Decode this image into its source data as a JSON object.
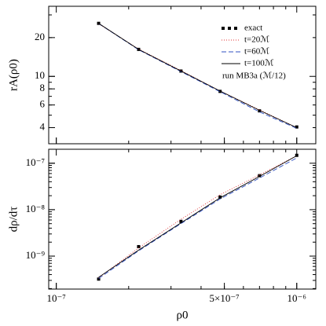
{
  "chart_data": [
    {
      "type": "line",
      "ylabel": "rA(ρ0)",
      "log_x": true,
      "log_y": true,
      "x": [
        1.5e-07,
        2.2e-07,
        3.3e-07,
        4.8e-07,
        7e-07,
        1e-06
      ],
      "xlim": [
        9.3e-08,
        1.2e-06
      ],
      "ylim": [
        3,
        35
      ],
      "yticks": [
        4,
        6,
        8,
        10,
        20
      ],
      "series": [
        {
          "name": "exact",
          "color": "#000000",
          "line_style": "markers",
          "values": [
            25.8,
            16.2,
            11.0,
            7.65,
            5.4,
            4.05
          ]
        },
        {
          "name": "t=20ℳ",
          "color": "#e03030",
          "line_style": "dotted",
          "values": [
            25.6,
            16.3,
            11.1,
            7.7,
            5.5,
            4.0
          ]
        },
        {
          "name": "t=60ℳ",
          "color": "#3050c0",
          "line_style": "dashed",
          "values": [
            25.7,
            16.1,
            10.9,
            7.6,
            5.3,
            3.95
          ]
        },
        {
          "name": "t=100ℳ",
          "color": "#000000",
          "line_style": "solid",
          "values": [
            25.8,
            16.2,
            11.0,
            7.7,
            5.45,
            4.0
          ]
        }
      ],
      "annotation": "run MB3a (ℳ/12)"
    },
    {
      "type": "line",
      "ylabel": "dρ/dτ",
      "xlabel": "ρ0",
      "log_x": true,
      "log_y": true,
      "x": [
        1.5e-07,
        2.2e-07,
        3.3e-07,
        4.8e-07,
        7e-07,
        1e-06
      ],
      "xlim": [
        9.3e-08,
        1.2e-06
      ],
      "ylim": [
        1.95e-10,
        2e-07
      ],
      "xticks": [
        {
          "value": 1e-07,
          "label": "10⁻⁷"
        },
        {
          "value": 5e-07,
          "label": "5×10⁻⁷"
        },
        {
          "value": 1e-06,
          "label": "10⁻⁶"
        }
      ],
      "yticks": [
        {
          "value": 1e-09,
          "label": "10⁻⁹"
        },
        {
          "value": 1e-08,
          "label": "10⁻⁸"
        },
        {
          "value": 1e-07,
          "label": "10⁻⁷"
        }
      ],
      "series": [
        {
          "name": "exact",
          "color": "#000000",
          "line_style": "markers",
          "values": [
            3.2e-10,
            1.6e-09,
            5.6e-09,
            1.87e-08,
            5.4e-08,
            1.48e-07
          ]
        },
        {
          "name": "t=20ℳ",
          "color": "#e03030",
          "line_style": "dotted",
          "values": [
            3.4e-10,
            1.5e-09,
            6.2e-09,
            2.1e-08,
            5.6e-08,
            1.45e-07
          ]
        },
        {
          "name": "t=60ℳ",
          "color": "#3050c0",
          "line_style": "dashed",
          "values": [
            3.3e-10,
            1.3e-09,
            5e-09,
            1.7e-08,
            4.8e-08,
            1.3e-07
          ]
        },
        {
          "name": "t=100ℳ",
          "color": "#000000",
          "line_style": "solid",
          "values": [
            3.5e-10,
            1.35e-09,
            5.2e-09,
            1.8e-08,
            5.2e-08,
            1.45e-07
          ]
        }
      ]
    }
  ]
}
